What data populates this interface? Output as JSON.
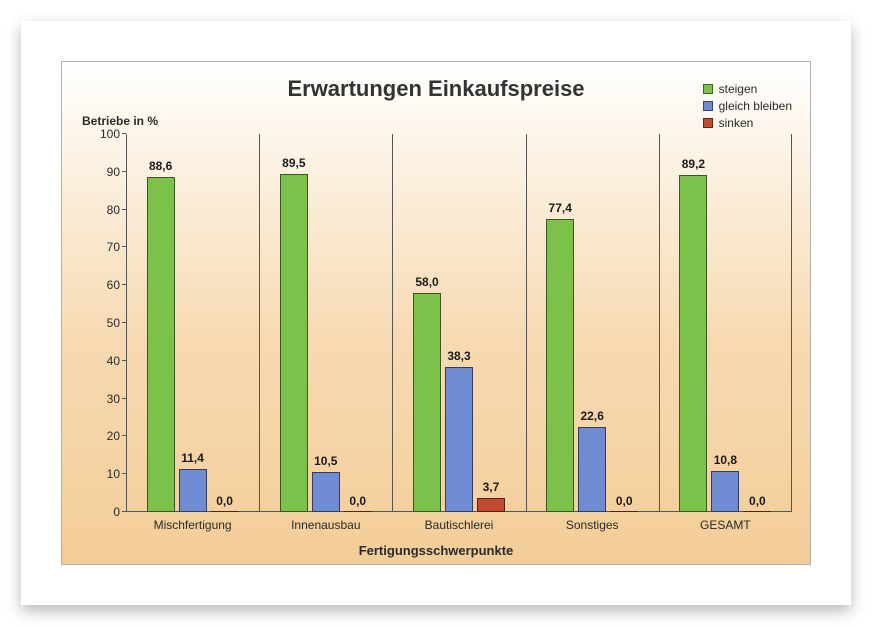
{
  "chart": {
    "type": "bar",
    "title": "Erwartungen Einkaufspreise",
    "title_fontsize": 22,
    "ylabel": "Betriebe in %",
    "xlabel": "Fertigungsschwerpunkte",
    "label_fontsize": 12,
    "ylim": [
      0,
      100
    ],
    "ytick_step": 10,
    "background_gradient": [
      "#ffffff",
      "#f7dab2",
      "#f3cd98"
    ],
    "axis_color": "#555555",
    "text_color": "#2a2a2a",
    "categories": [
      "Mischfertigung",
      "Innenausbau",
      "Bautischlerei",
      "Sonstiges",
      "GESAMT"
    ],
    "series": [
      {
        "name": "steigen",
        "color": "#7cc24a",
        "values": [
          88.6,
          89.5,
          58.0,
          77.4,
          89.2
        ],
        "labels": [
          "88,6",
          "89,5",
          "58,0",
          "77,4",
          "89,2"
        ]
      },
      {
        "name": "gleich bleiben",
        "color": "#6f8bd1",
        "values": [
          11.4,
          10.5,
          38.3,
          22.6,
          10.8
        ],
        "labels": [
          "11,4",
          "10,5",
          "38,3",
          "22,6",
          "10,8"
        ]
      },
      {
        "name": "sinken",
        "color": "#c24a2f",
        "values": [
          0.0,
          0.0,
          3.7,
          0.0,
          0.0
        ],
        "labels": [
          "0,0",
          "0,0",
          "3,7",
          "0,0",
          "0,0"
        ]
      }
    ],
    "bar_rel_width": 0.21,
    "bar_gap": 0.03
  }
}
